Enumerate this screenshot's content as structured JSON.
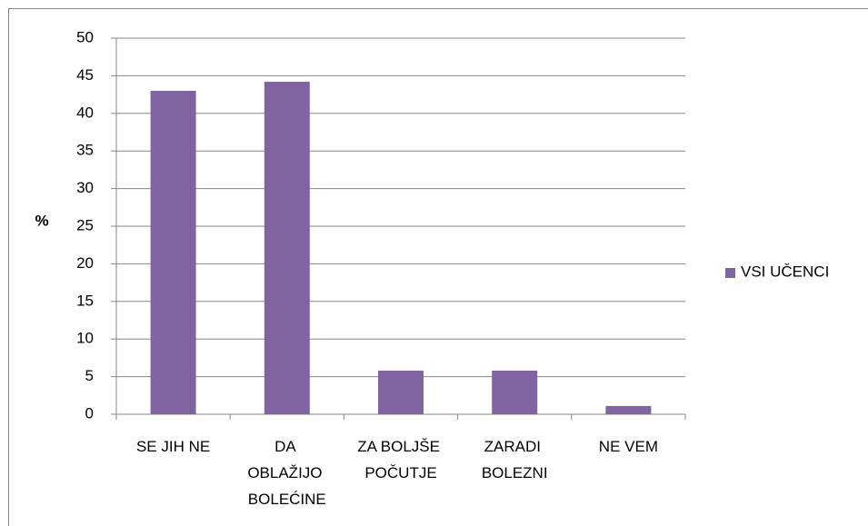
{
  "chart_data": {
    "type": "bar",
    "y_label": "%",
    "categories": [
      "SE JIH NE",
      "DA OBLAŽIJO BOLEĆINE",
      "ZA BOLJŠE POČUTJE",
      "ZARADI BOLEZNI",
      "NE VEM"
    ],
    "series": [
      {
        "name": "VSI UČENCI",
        "color": "#8064a2",
        "values": [
          43,
          44.2,
          5.8,
          5.8,
          1.1
        ]
      }
    ],
    "ylim": [
      0,
      50
    ],
    "yticks": [
      0,
      5,
      10,
      15,
      20,
      25,
      30,
      35,
      40,
      45,
      50
    ],
    "grid": true,
    "legend": "right"
  }
}
